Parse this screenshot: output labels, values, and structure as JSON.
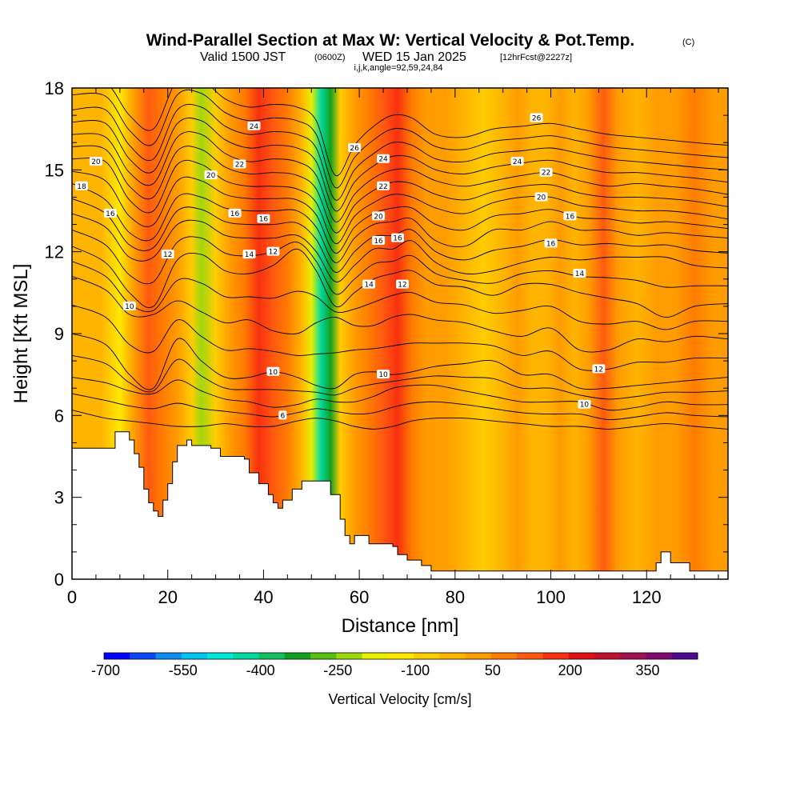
{
  "chart_data": {
    "type": "heatmap",
    "title": "Wind-Parallel Section at Max W: Vertical Velocity & Pot.Temp.",
    "copyright_mark": "(C)",
    "subtitle": {
      "valid": "Valid 1500 JST",
      "utc": "(0600Z)",
      "date": "WED 15 Jan 2025",
      "forecast": "[12hrFcst@2227z]"
    },
    "indices_label": "i,j,k,angle=92,59,24,84",
    "xlabel": "Distance [nm]",
    "ylabel": "Height [Kft MSL]",
    "xlim": [
      0,
      137
    ],
    "ylim": [
      0,
      18
    ],
    "x_ticks": [
      "0",
      "20",
      "40",
      "60",
      "80",
      "100",
      "120"
    ],
    "x_tick_values": [
      0,
      20,
      40,
      60,
      80,
      100,
      120
    ],
    "y_ticks": [
      "0",
      "3",
      "6",
      "9",
      "12",
      "15",
      "18"
    ],
    "y_tick_values": [
      0,
      3,
      6,
      9,
      12,
      15,
      18
    ],
    "colorbar": {
      "label": "Vertical Velocity [cm/s]",
      "tick_labels": [
        "-700",
        "-550",
        "-400",
        "-250",
        "-100",
        "50",
        "200",
        "350"
      ],
      "colors": [
        "#0000ff",
        "#0a48f5",
        "#0a8cf0",
        "#00c4f0",
        "#00e8d8",
        "#00d8a0",
        "#10c060",
        "#10a020",
        "#58c010",
        "#a0d810",
        "#e8f000",
        "#ffe800",
        "#ffcc00",
        "#ffb400",
        "#ff9c00",
        "#ff7c00",
        "#ff5a10",
        "#f83010",
        "#e01010",
        "#c01030",
        "#a01050",
        "#800870",
        "#500890"
      ]
    },
    "vertical_velocity_bands": [
      {
        "x": 0,
        "w": -30
      },
      {
        "x": 3,
        "w": -20
      },
      {
        "x": 6,
        "w": -10
      },
      {
        "x": 10,
        "w": -140
      },
      {
        "x": 13,
        "w": 40
      },
      {
        "x": 16,
        "w": 130
      },
      {
        "x": 19,
        "w": 90
      },
      {
        "x": 22,
        "w": 30
      },
      {
        "x": 25,
        "w": -60
      },
      {
        "x": 27,
        "w": -220
      },
      {
        "x": 30,
        "w": -80
      },
      {
        "x": 33,
        "w": 40
      },
      {
        "x": 36,
        "w": 70
      },
      {
        "x": 39,
        "w": 170
      },
      {
        "x": 42,
        "w": 130
      },
      {
        "x": 45,
        "w": 90
      },
      {
        "x": 48,
        "w": -20
      },
      {
        "x": 50,
        "w": -180
      },
      {
        "x": 52,
        "w": -430
      },
      {
        "x": 54,
        "w": -330
      },
      {
        "x": 56,
        "w": -90
      },
      {
        "x": 59,
        "w": 40
      },
      {
        "x": 62,
        "w": 80
      },
      {
        "x": 65,
        "w": 140
      },
      {
        "x": 68,
        "w": 170
      },
      {
        "x": 71,
        "w": 60
      },
      {
        "x": 74,
        "w": 0
      },
      {
        "x": 78,
        "w": 20
      },
      {
        "x": 82,
        "w": -20
      },
      {
        "x": 86,
        "w": -70
      },
      {
        "x": 90,
        "w": -40
      },
      {
        "x": 93,
        "w": 20
      },
      {
        "x": 96,
        "w": -50
      },
      {
        "x": 99,
        "w": -20
      },
      {
        "x": 102,
        "w": 10
      },
      {
        "x": 105,
        "w": -40
      },
      {
        "x": 108,
        "w": 40
      },
      {
        "x": 111,
        "w": 110
      },
      {
        "x": 114,
        "w": 40
      },
      {
        "x": 118,
        "w": -40
      },
      {
        "x": 122,
        "w": 20
      },
      {
        "x": 126,
        "w": 0
      },
      {
        "x": 130,
        "w": 70
      },
      {
        "x": 134,
        "w": 20
      },
      {
        "x": 137,
        "w": 0
      }
    ],
    "terrain": [
      {
        "x": 0,
        "h": 4.8
      },
      {
        "x": 8,
        "h": 4.8
      },
      {
        "x": 9,
        "h": 5.4
      },
      {
        "x": 11,
        "h": 5.4
      },
      {
        "x": 12,
        "h": 5.1
      },
      {
        "x": 13,
        "h": 4.6
      },
      {
        "x": 14,
        "h": 4.1
      },
      {
        "x": 15,
        "h": 3.3
      },
      {
        "x": 16,
        "h": 2.8
      },
      {
        "x": 17,
        "h": 2.5
      },
      {
        "x": 18,
        "h": 2.3
      },
      {
        "x": 19,
        "h": 2.9
      },
      {
        "x": 20,
        "h": 3.5
      },
      {
        "x": 21,
        "h": 4.3
      },
      {
        "x": 22,
        "h": 4.9
      },
      {
        "x": 24,
        "h": 5.1
      },
      {
        "x": 25,
        "h": 4.9
      },
      {
        "x": 29,
        "h": 4.8
      },
      {
        "x": 31,
        "h": 4.5
      },
      {
        "x": 36,
        "h": 4.4
      },
      {
        "x": 37,
        "h": 3.9
      },
      {
        "x": 39,
        "h": 3.5
      },
      {
        "x": 41,
        "h": 3.1
      },
      {
        "x": 42,
        "h": 2.8
      },
      {
        "x": 43,
        "h": 2.6
      },
      {
        "x": 44,
        "h": 2.9
      },
      {
        "x": 46,
        "h": 3.3
      },
      {
        "x": 48,
        "h": 3.6
      },
      {
        "x": 52,
        "h": 3.6
      },
      {
        "x": 54,
        "h": 3.1
      },
      {
        "x": 56,
        "h": 2.2
      },
      {
        "x": 57,
        "h": 1.6
      },
      {
        "x": 58,
        "h": 1.3
      },
      {
        "x": 59,
        "h": 1.6
      },
      {
        "x": 61,
        "h": 1.6
      },
      {
        "x": 62,
        "h": 1.3
      },
      {
        "x": 67,
        "h": 1.2
      },
      {
        "x": 68,
        "h": 0.9
      },
      {
        "x": 70,
        "h": 0.7
      },
      {
        "x": 73,
        "h": 0.5
      },
      {
        "x": 75,
        "h": 0.3
      },
      {
        "x": 121,
        "h": 0.3
      },
      {
        "x": 122,
        "h": 0.6
      },
      {
        "x": 123,
        "h": 1.0
      },
      {
        "x": 124,
        "h": 1.0
      },
      {
        "x": 125,
        "h": 0.6
      },
      {
        "x": 128,
        "h": 0.6
      },
      {
        "x": 129,
        "h": 0.3
      },
      {
        "x": 137,
        "h": 0.3
      }
    ],
    "theta_contours": {
      "x": [
        0,
        7,
        12,
        17,
        22,
        27,
        32,
        37,
        42,
        47,
        51,
        55,
        59,
        63,
        67,
        71,
        76,
        82,
        88,
        94,
        100,
        106,
        112,
        118,
        124,
        130,
        137
      ],
      "levels": [
        {
          "value": 6,
          "heights": [
            6.2,
            5.9,
            5.8,
            5.7,
            5.6,
            5.6,
            5.7,
            5.6,
            5.6,
            5.8,
            5.9,
            5.8,
            5.6,
            5.5,
            5.6,
            5.8,
            5.9,
            5.9,
            5.8,
            5.7,
            5.6,
            5.6,
            5.5,
            5.6,
            5.7,
            5.6,
            5.5
          ]
        },
        {
          "value": 8,
          "heights": [
            7.4,
            7.2,
            6.9,
            6.8,
            7.3,
            6.9,
            6.6,
            6.5,
            6.3,
            6.4,
            6.6,
            6.5,
            6.5,
            6.7,
            7.0,
            7.1,
            7.1,
            6.9,
            6.7,
            6.5,
            6.5,
            6.5,
            6.2,
            6.3,
            6.5,
            6.4,
            6.4
          ]
        },
        {
          "value": 10,
          "heights": [
            9.0,
            8.6,
            7.5,
            7.0,
            8.8,
            8.0,
            7.4,
            7.4,
            7.6,
            7.4,
            7.1,
            7.0,
            7.5,
            7.6,
            7.5,
            7.6,
            7.8,
            7.9,
            8.0,
            7.5,
            7.5,
            7.0,
            7.0,
            7.1,
            7.2,
            7.3,
            7.4
          ]
        },
        {
          "value": 12,
          "heights": [
            11.1,
            10.6,
            9.7,
            9.7,
            10.2,
            9.8,
            9.4,
            9.5,
            9.1,
            9.0,
            9.4,
            9.6,
            9.3,
            9.3,
            9.6,
            9.7,
            9.5,
            9.4,
            9.1,
            8.9,
            9.2,
            8.4,
            8.4,
            8.8,
            8.7,
            8.9,
            8.8
          ]
        },
        {
          "value": 14,
          "heights": [
            12.2,
            11.6,
            10.5,
            10.0,
            11.7,
            11.9,
            11.3,
            11.2,
            11.5,
            12.1,
            11.3,
            10.0,
            10.5,
            11.0,
            11.2,
            11.3,
            10.8,
            10.7,
            10.4,
            10.8,
            10.8,
            10.5,
            10.3,
            10.1,
            9.6,
            10.0,
            10.1
          ]
        },
        {
          "value": 16,
          "heights": [
            13.4,
            12.9,
            11.8,
            11.8,
            13.0,
            13.1,
            12.6,
            12.5,
            12.5,
            12.6,
            12.0,
            10.9,
            11.5,
            12.1,
            12.1,
            12.4,
            11.6,
            11.2,
            11.3,
            11.6,
            11.8,
            11.7,
            11.8,
            11.8,
            11.8,
            11.5,
            11.4
          ]
        },
        {
          "value": 18,
          "heights": [
            14.5,
            13.9,
            12.7,
            12.5,
            14.0,
            14.0,
            13.6,
            13.5,
            13.5,
            13.5,
            12.9,
            11.6,
            12.5,
            13.0,
            13.1,
            13.2,
            12.4,
            12.2,
            12.8,
            12.8,
            13.1,
            12.8,
            12.8,
            12.6,
            12.7,
            12.6,
            12.5
          ]
        },
        {
          "value": 20,
          "heights": [
            15.4,
            15.3,
            13.9,
            13.5,
            15.2,
            15.2,
            14.6,
            14.4,
            14.4,
            14.3,
            13.8,
            12.3,
            13.3,
            13.8,
            14.1,
            14.0,
            13.6,
            13.4,
            13.8,
            14.0,
            14.0,
            13.7,
            13.6,
            13.5,
            13.5,
            13.4,
            13.2
          ]
        },
        {
          "value": 22,
          "heights": [
            16.3,
            16.2,
            14.9,
            14.5,
            16.2,
            16.3,
            15.6,
            15.3,
            15.4,
            15.3,
            14.8,
            13.1,
            14.1,
            14.7,
            15.0,
            15.0,
            14.6,
            14.4,
            14.6,
            14.8,
            14.9,
            14.6,
            14.4,
            14.5,
            14.4,
            14.3,
            14.1
          ]
        },
        {
          "value": 24,
          "heights": [
            17.2,
            17.2,
            15.9,
            15.4,
            17.2,
            17.3,
            16.6,
            16.3,
            16.4,
            16.3,
            15.8,
            13.9,
            15.0,
            15.6,
            16.0,
            15.9,
            15.4,
            15.3,
            15.6,
            15.7,
            15.8,
            15.6,
            15.4,
            15.3,
            15.2,
            15.1,
            15.0
          ]
        },
        {
          "value": 26,
          "heights": [
            18.3,
            18.2,
            17.0,
            16.5,
            18.3,
            18.3,
            17.6,
            17.3,
            17.4,
            17.3,
            16.8,
            14.8,
            15.9,
            16.6,
            17.0,
            16.9,
            16.3,
            16.2,
            16.5,
            16.6,
            16.7,
            16.5,
            16.3,
            16.2,
            16.1,
            16.0,
            15.9
          ]
        }
      ],
      "labels": [
        {
          "text": "6",
          "x": 44,
          "y": 6.0
        },
        {
          "text": "10",
          "x": 42,
          "y": 7.6
        },
        {
          "text": "10",
          "x": 65,
          "y": 7.5
        },
        {
          "text": "10",
          "x": 107,
          "y": 6.4
        },
        {
          "text": "10",
          "x": 12,
          "y": 10.0
        },
        {
          "text": "12",
          "x": 110,
          "y": 7.7
        },
        {
          "text": "12",
          "x": 69,
          "y": 10.8
        },
        {
          "text": "12",
          "x": 20,
          "y": 11.9
        },
        {
          "text": "12",
          "x": 42,
          "y": 12.0
        },
        {
          "text": "14",
          "x": 62,
          "y": 10.8
        },
        {
          "text": "14",
          "x": 37,
          "y": 11.9
        },
        {
          "text": "14",
          "x": 106,
          "y": 11.2
        },
        {
          "text": "16",
          "x": 8,
          "y": 13.4
        },
        {
          "text": "16",
          "x": 40,
          "y": 13.2
        },
        {
          "text": "16",
          "x": 68,
          "y": 12.5
        },
        {
          "text": "16",
          "x": 100,
          "y": 12.3
        },
        {
          "text": "16",
          "x": 34,
          "y": 13.4
        },
        {
          "text": "16",
          "x": 64,
          "y": 12.4
        },
        {
          "text": "16",
          "x": 104,
          "y": 13.3
        },
        {
          "text": "18",
          "x": 2,
          "y": 14.4
        },
        {
          "text": "20",
          "x": 29,
          "y": 14.8
        },
        {
          "text": "20",
          "x": 64,
          "y": 13.3
        },
        {
          "text": "20",
          "x": 98,
          "y": 14.0
        },
        {
          "text": "20",
          "x": 5,
          "y": 15.3
        },
        {
          "text": "22",
          "x": 35,
          "y": 15.2
        },
        {
          "text": "22",
          "x": 65,
          "y": 14.4
        },
        {
          "text": "22",
          "x": 99,
          "y": 14.9
        },
        {
          "text": "24",
          "x": 38,
          "y": 16.6
        },
        {
          "text": "24",
          "x": 65,
          "y": 15.4
        },
        {
          "text": "24",
          "x": 93,
          "y": 15.3
        },
        {
          "text": "26",
          "x": 59,
          "y": 15.8
        },
        {
          "text": "26",
          "x": 97,
          "y": 16.9
        }
      ]
    }
  }
}
